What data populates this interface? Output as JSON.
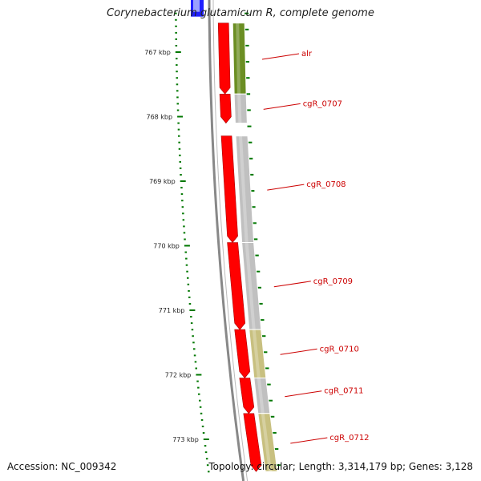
{
  "title": "Corynebacterium glutamicum R, complete genome",
  "footer": {
    "accession_label": "Accession:",
    "accession": "NC_009342",
    "topology": "Topology: circular",
    "length": "Length: 3,314,179 bp",
    "genes": "Genes: 3,128"
  },
  "colors": {
    "backbone": "#888888",
    "tick": "#007700",
    "cds_strand": "#ff0000",
    "label": "#cc0000",
    "cog_gray": "#c0c0c0",
    "cog_olive": "#6b8e23",
    "cog_khaki": "#c8c080",
    "cog_blue": "#2020ff"
  },
  "scale": {
    "unit": "kbp",
    "ticks": [
      {
        "value": 767,
        "label": "767 kbp"
      },
      {
        "value": 768,
        "label": "768 kbp"
      },
      {
        "value": 769,
        "label": "769 kbp"
      },
      {
        "value": 770,
        "label": "770 kbp"
      },
      {
        "value": 771,
        "label": "771 kbp"
      },
      {
        "value": 772,
        "label": "772 kbp"
      },
      {
        "value": 773,
        "label": "773 kbp"
      }
    ]
  },
  "genes": [
    {
      "name": "",
      "start": 766.2,
      "end": 766.45,
      "cog": "blue",
      "strand": "none"
    },
    {
      "name": "alr",
      "start": 766.55,
      "end": 767.65,
      "cog": "olive",
      "strand": "reverse"
    },
    {
      "name": "cgR_0707",
      "start": 767.65,
      "end": 768.1,
      "cog": "gray",
      "strand": "reverse"
    },
    {
      "name": "cgR_0708",
      "start": 768.3,
      "end": 769.95,
      "cog": "gray",
      "strand": "reverse"
    },
    {
      "name": "cgR_0709",
      "start": 769.95,
      "end": 771.3,
      "cog": "gray",
      "strand": "reverse"
    },
    {
      "name": "cgR_0710",
      "start": 771.3,
      "end": 772.05,
      "cog": "khaki",
      "strand": "reverse"
    },
    {
      "name": "cgR_0711",
      "start": 772.05,
      "end": 772.6,
      "cog": "gray",
      "strand": "reverse"
    },
    {
      "name": "cgR_0712",
      "start": 772.6,
      "end": 773.5,
      "cog": "khaki",
      "strand": "reverse"
    }
  ]
}
